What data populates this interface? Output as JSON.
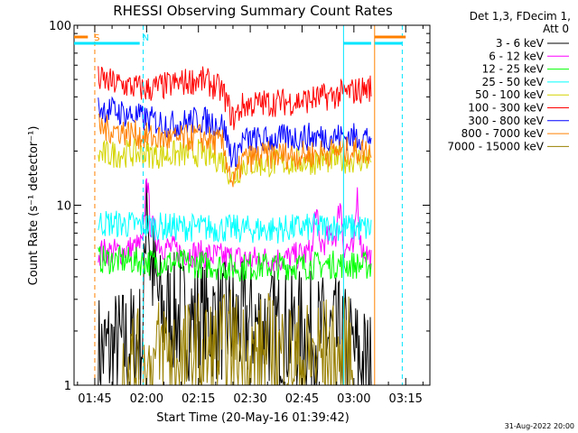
{
  "chart_data": {
    "type": "line",
    "title": "RHESSI Observing Summary Count Rates",
    "xlabel": "Start Time (20-May-16 01:39:42)",
    "ylabel": "Count Rate (s⁻¹ detector⁻¹)",
    "yscale": "log",
    "ylim": [
      1,
      100
    ],
    "xlim": [
      "01:39",
      "03:22"
    ],
    "y_ticks": [
      "1",
      "10",
      "100"
    ],
    "x_ticks": [
      "01:45",
      "02:00",
      "02:15",
      "02:30",
      "02:45",
      "03:00",
      "03:15"
    ],
    "legend_header": [
      "Det 1,3, FDecim 1,",
      "Att 0"
    ],
    "legend_position": "right",
    "footer_date": "31-Aug-2022 20:00",
    "markers": [
      {
        "label": "S",
        "time": "01:44",
        "color": "#ff8000"
      },
      {
        "label": "N",
        "time": "01:58",
        "color": "#00e5ff"
      }
    ],
    "vertical_lines": [
      {
        "time": "01:45",
        "color": "#ff8000",
        "style": "dashed"
      },
      {
        "time": "01:59",
        "color": "#00e5ff",
        "style": "dashed"
      },
      {
        "time": "02:57",
        "color": "#00e5ff",
        "style": "solid"
      },
      {
        "time": "03:06",
        "color": "#ff8000",
        "style": "solid"
      },
      {
        "time": "03:14",
        "color": "#00e5ff",
        "style": "dashed"
      }
    ],
    "series": [
      {
        "name": "3 - 6 keV",
        "color": "#000000",
        "points": [
          [
            "01:46",
            1.5
          ],
          [
            "01:52",
            1.6
          ],
          [
            "01:59",
            1.8
          ],
          [
            "02:00",
            16
          ],
          [
            "02:01",
            5
          ],
          [
            "02:04",
            2.6
          ],
          [
            "02:10",
            2.4
          ],
          [
            "02:15",
            2.3
          ],
          [
            "02:20",
            2.3
          ],
          [
            "02:25",
            2.2
          ],
          [
            "02:30",
            2.2
          ],
          [
            "02:35",
            2.1
          ],
          [
            "02:40",
            2.0
          ],
          [
            "02:45",
            2.0
          ],
          [
            "02:50",
            1.9
          ],
          [
            "02:55",
            1.8
          ],
          [
            "03:00",
            1.5
          ],
          [
            "03:05",
            1.2
          ]
        ]
      },
      {
        "name": "6 - 12 keV",
        "color": "#ff00ff",
        "points": [
          [
            "01:46",
            5.5
          ],
          [
            "01:52",
            5.5
          ],
          [
            "01:59",
            6
          ],
          [
            "02:00",
            16
          ],
          [
            "02:01",
            8
          ],
          [
            "02:04",
            6
          ],
          [
            "02:10",
            5.5
          ],
          [
            "02:20",
            5.2
          ],
          [
            "02:30",
            5
          ],
          [
            "02:40",
            5
          ],
          [
            "02:48",
            5.5
          ],
          [
            "02:49",
            10
          ],
          [
            "02:50",
            6
          ],
          [
            "02:55",
            7
          ],
          [
            "02:56",
            11
          ],
          [
            "02:57",
            6
          ],
          [
            "03:00",
            5.5
          ],
          [
            "03:01",
            12
          ],
          [
            "03:02",
            6
          ],
          [
            "03:05",
            5
          ]
        ]
      },
      {
        "name": "12 - 25 keV",
        "color": "#00ff00",
        "points": [
          [
            "01:46",
            5
          ],
          [
            "01:55",
            4.9
          ],
          [
            "02:05",
            4.8
          ],
          [
            "02:15",
            4.7
          ],
          [
            "02:25",
            4.5
          ],
          [
            "02:35",
            4.6
          ],
          [
            "02:45",
            4.6
          ],
          [
            "02:55",
            4.7
          ],
          [
            "03:05",
            4.6
          ]
        ]
      },
      {
        "name": "25 - 50 keV",
        "color": "#00ffff",
        "points": [
          [
            "01:46",
            8
          ],
          [
            "01:55",
            7.8
          ],
          [
            "02:05",
            7.6
          ],
          [
            "02:15",
            7.5
          ],
          [
            "02:25",
            7.4
          ],
          [
            "02:35",
            7.3
          ],
          [
            "02:45",
            7.5
          ],
          [
            "02:55",
            7.6
          ],
          [
            "03:05",
            7.4
          ]
        ]
      },
      {
        "name": "50 - 100 keV",
        "color": "#d4d400",
        "points": [
          [
            "01:46",
            19
          ],
          [
            "01:55",
            19.5
          ],
          [
            "02:05",
            19
          ],
          [
            "02:15",
            19.5
          ],
          [
            "02:22",
            18
          ],
          [
            "02:25",
            14
          ],
          [
            "02:28",
            17
          ],
          [
            "02:35",
            17
          ],
          [
            "02:45",
            17.5
          ],
          [
            "02:55",
            18
          ],
          [
            "03:05",
            18
          ]
        ]
      },
      {
        "name": "100 - 300 keV",
        "color": "#ff0000",
        "points": [
          [
            "01:46",
            50
          ],
          [
            "01:52",
            47
          ],
          [
            "02:00",
            44
          ],
          [
            "02:08",
            47
          ],
          [
            "02:15",
            50
          ],
          [
            "02:18",
            48
          ],
          [
            "02:22",
            43
          ],
          [
            "02:25",
            30
          ],
          [
            "02:28",
            36
          ],
          [
            "02:35",
            37
          ],
          [
            "02:45",
            38
          ],
          [
            "02:55",
            41
          ],
          [
            "03:00",
            43
          ],
          [
            "03:05",
            45
          ]
        ]
      },
      {
        "name": "300 - 800 keV",
        "color": "#0000ff",
        "points": [
          [
            "01:46",
            35
          ],
          [
            "01:52",
            33
          ],
          [
            "02:00",
            30
          ],
          [
            "02:08",
            28
          ],
          [
            "02:15",
            30
          ],
          [
            "02:22",
            28
          ],
          [
            "02:25",
            18
          ],
          [
            "02:28",
            23
          ],
          [
            "02:35",
            23
          ],
          [
            "02:45",
            24
          ],
          [
            "02:55",
            24
          ],
          [
            "03:05",
            24
          ]
        ]
      },
      {
        "name": "800 - 7000 keV",
        "color": "#ff8000",
        "points": [
          [
            "01:46",
            27
          ],
          [
            "01:52",
            26
          ],
          [
            "02:00",
            24
          ],
          [
            "02:08",
            23
          ],
          [
            "02:15",
            24
          ],
          [
            "02:22",
            22
          ],
          [
            "02:25",
            13
          ],
          [
            "02:28",
            18
          ],
          [
            "02:35",
            19
          ],
          [
            "02:45",
            19
          ],
          [
            "02:55",
            20
          ],
          [
            "03:05",
            20
          ]
        ]
      },
      {
        "name": "7000 - 15000 keV",
        "color": "#998000",
        "points": [
          [
            "01:53",
            1.1
          ],
          [
            "01:55",
            1.3
          ],
          [
            "02:00",
            1.1
          ],
          [
            "02:05",
            1.6
          ],
          [
            "02:10",
            1.3
          ],
          [
            "02:15",
            1.5
          ],
          [
            "02:20",
            1.4
          ],
          [
            "02:25",
            1.6
          ],
          [
            "02:30",
            1.3
          ],
          [
            "02:35",
            1.5
          ],
          [
            "02:40",
            1.4
          ],
          [
            "02:45",
            1.3
          ],
          [
            "02:50",
            1.5
          ],
          [
            "02:55",
            1.3
          ],
          [
            "03:00",
            1.5
          ]
        ]
      }
    ]
  }
}
